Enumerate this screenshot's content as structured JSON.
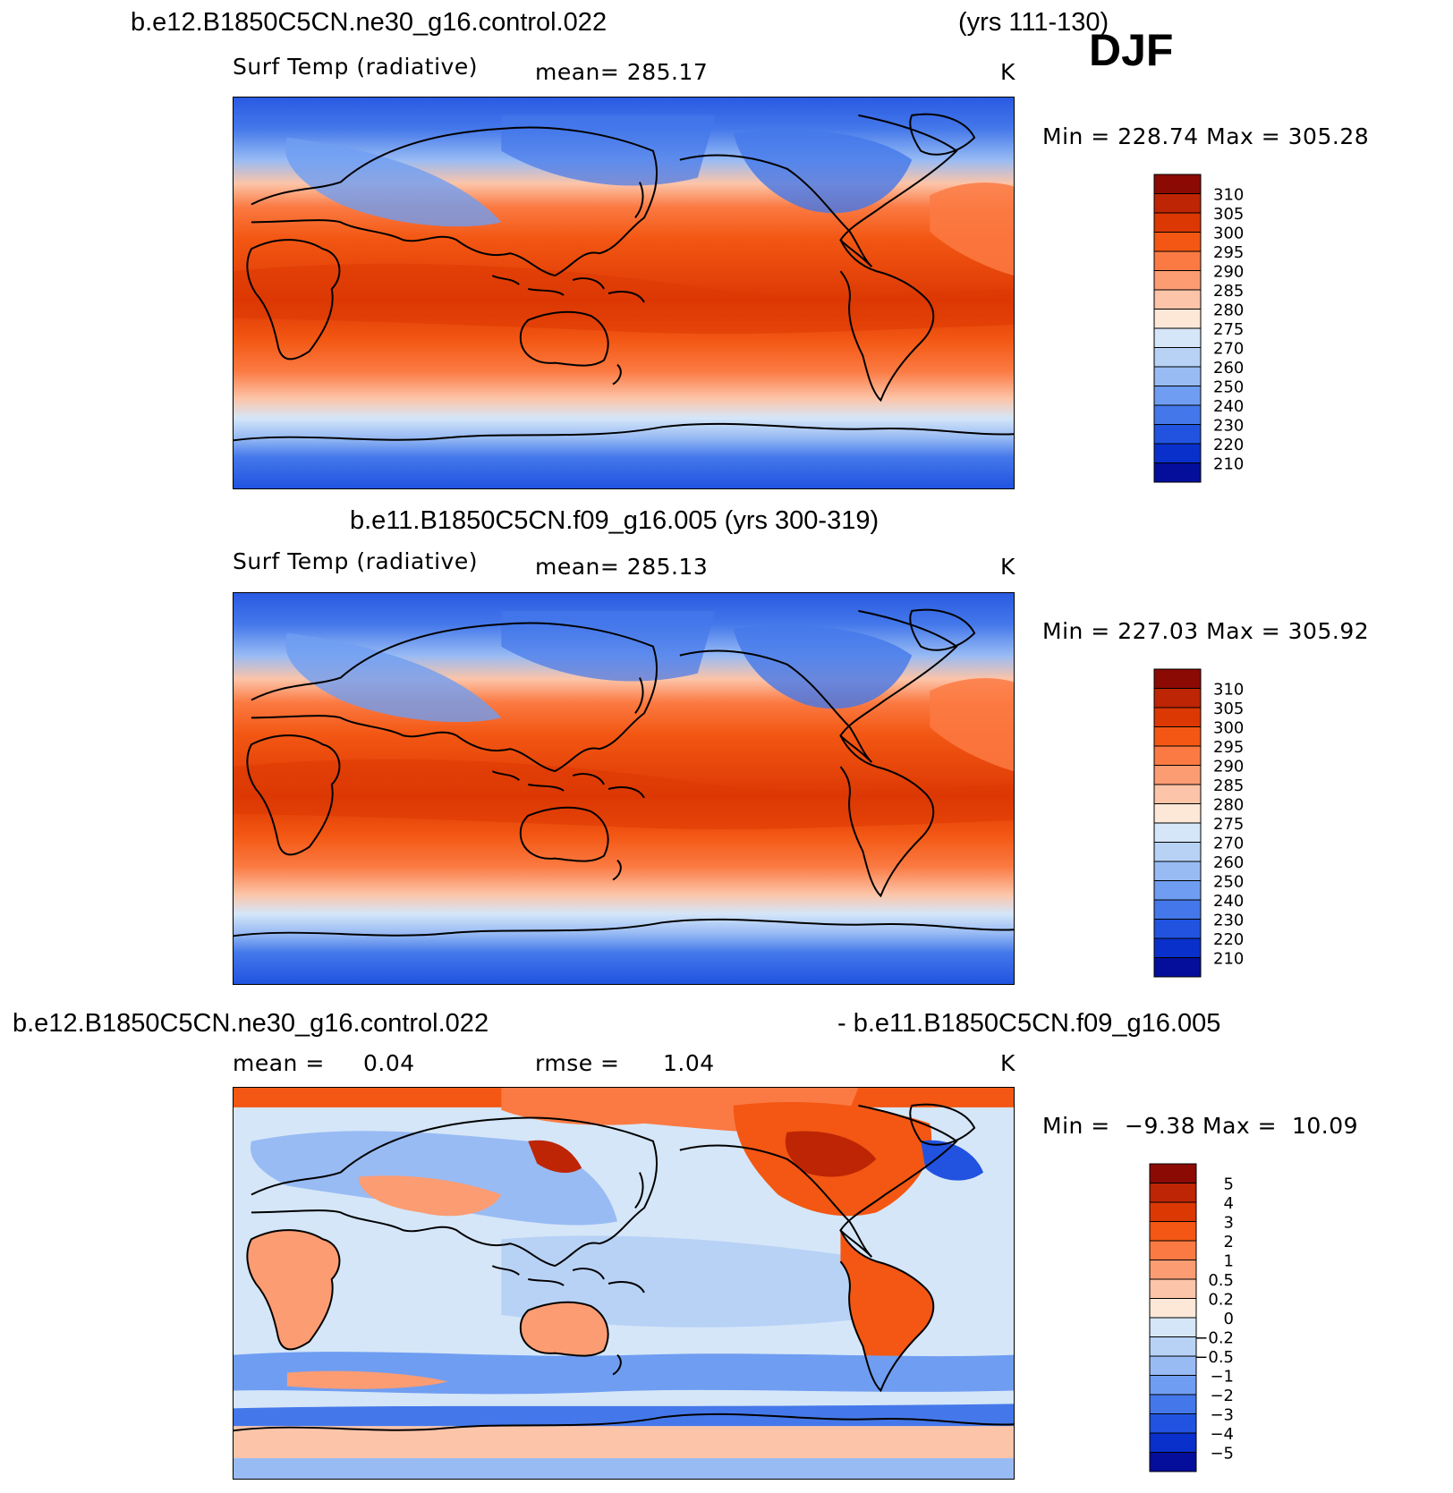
{
  "header": {
    "case_a": "b.e12.B1850C5CN.ne30_g16.control.022",
    "case_a_years": "(yrs 111-130)",
    "season": "DJF"
  },
  "panels": [
    {
      "id": "top",
      "variable": "Surf Temp (radiative)",
      "mean_text": "mean=  285.17",
      "units": "K",
      "min_max_text": "Min  =  228.74  Max  =  305.28",
      "levels": [
        "310",
        "305",
        "300",
        "295",
        "290",
        "285",
        "280",
        "275",
        "270",
        "260",
        "250",
        "240",
        "230",
        "220",
        "210"
      ],
      "colors": [
        "#8c0a04",
        "#bd2504",
        "#dc3804",
        "#f35713",
        "#fb7a43",
        "#fc9c73",
        "#fcc4a8",
        "#fde8d8",
        "#d5e6f8",
        "#b8d2f6",
        "#98bbf4",
        "#6f9df1",
        "#4478ea",
        "#2153e0",
        "#0a30cb",
        "#040e9a"
      ]
    },
    {
      "id": "middle",
      "title": "b.e11.B1850C5CN.f09_g16.005 (yrs 300-319)",
      "variable": "Surf Temp (radiative)",
      "mean_text": "mean=  285.13",
      "units": "K",
      "min_max_text": "Min  =  227.03  Max  =  305.92",
      "levels": [
        "310",
        "305",
        "300",
        "295",
        "290",
        "285",
        "280",
        "275",
        "270",
        "260",
        "250",
        "240",
        "230",
        "220",
        "210"
      ],
      "colors": [
        "#8c0a04",
        "#bd2504",
        "#dc3804",
        "#f35713",
        "#fb7a43",
        "#fc9c73",
        "#fcc4a8",
        "#fde8d8",
        "#d5e6f8",
        "#b8d2f6",
        "#98bbf4",
        "#6f9df1",
        "#4478ea",
        "#2153e0",
        "#0a30cb",
        "#040e9a"
      ]
    },
    {
      "id": "diff",
      "title_left": "b.e12.B1850C5CN.ne30_g16.control.022",
      "title_right": "- b.e11.B1850C5CN.f09_g16.005",
      "mean_label": "mean  =",
      "mean_value": "0.04",
      "rmse_label": "rmse  =",
      "rmse_value": "1.04",
      "units": "K",
      "min_label": "Min  =",
      "min_value": "−9.38",
      "max_label": "Max  =",
      "max_value": "10.09",
      "levels": [
        "5",
        "4",
        "3",
        "2",
        "1",
        "0.5",
        "0.2",
        "0",
        "−0.2",
        "−0.5",
        "−1",
        "−2",
        "−3",
        "−4",
        "−5"
      ],
      "colors": [
        "#8c0a04",
        "#bd2504",
        "#dc3804",
        "#f35713",
        "#fb7a43",
        "#fc9c73",
        "#fcc4a8",
        "#fde8d8",
        "#d5e6f8",
        "#b8d2f6",
        "#98bbf4",
        "#6f9df1",
        "#4478ea",
        "#2153e0",
        "#0a30cb",
        "#040e9a"
      ]
    }
  ]
}
